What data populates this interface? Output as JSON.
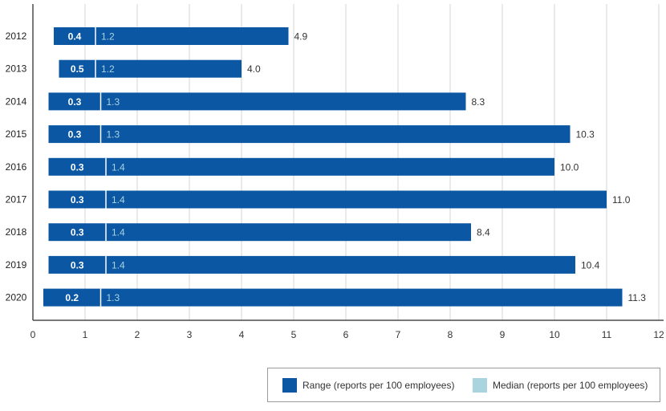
{
  "chart_data": {
    "type": "bar",
    "orientation": "horizontal",
    "categories": [
      "2012",
      "2013",
      "2014",
      "2015",
      "2016",
      "2017",
      "2018",
      "2019",
      "2020"
    ],
    "series": [
      {
        "name": "Range (reports per 100 employees)",
        "color": "#0b57a4",
        "low": [
          0.4,
          0.5,
          0.3,
          0.3,
          0.3,
          0.3,
          0.3,
          0.3,
          0.2
        ],
        "high": [
          4.9,
          4.0,
          8.3,
          10.3,
          10.0,
          11.0,
          8.4,
          10.4,
          11.3
        ]
      },
      {
        "name": "Median (reports per 100 employees)",
        "color": "#a9d3df",
        "values": [
          1.2,
          1.2,
          1.3,
          1.3,
          1.4,
          1.4,
          1.4,
          1.4,
          1.3
        ]
      }
    ],
    "labels": {
      "low": [
        "0.4",
        "0.5",
        "0.3",
        "0.3",
        "0.3",
        "0.3",
        "0.3",
        "0.3",
        "0.2"
      ],
      "median": [
        "1.2",
        "1.2",
        "1.3",
        "1.3",
        "1.4",
        "1.4",
        "1.4",
        "1.4",
        "1.3"
      ],
      "high": [
        "4.9",
        "4.0",
        "8.3",
        "10.3",
        "10.0",
        "11.0",
        "8.4",
        "10.4",
        "11.3"
      ]
    },
    "xlim": [
      0,
      12
    ],
    "xticks": [
      "0",
      "1",
      "2",
      "3",
      "4",
      "5",
      "6",
      "7",
      "8",
      "9",
      "10",
      "11",
      "12"
    ],
    "grid": "vertical",
    "legend_position": "bottom-right",
    "title": "",
    "xlabel": "",
    "ylabel": ""
  },
  "legend": {
    "range_label": "Range (reports per 100 employees)",
    "median_label": "Median (reports per 100 employees)"
  }
}
